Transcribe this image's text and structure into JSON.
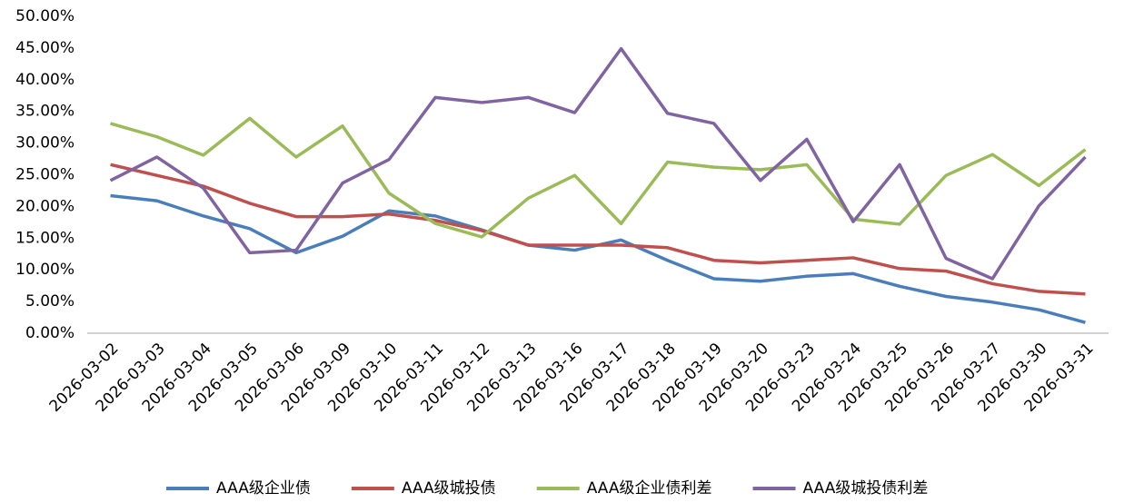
{
  "chart_data": {
    "type": "line",
    "categories": [
      "2026-03-02",
      "2026-03-03",
      "2026-03-04",
      "2026-03-05",
      "2026-03-06",
      "2026-03-09",
      "2026-03-10",
      "2026-03-11",
      "2026-03-12",
      "2026-03-13",
      "2026-03-16",
      "2026-03-17",
      "2026-03-18",
      "2026-03-19",
      "2026-03-20",
      "2026-03-23",
      "2026-03-24",
      "2026-03-25",
      "2026-03-26",
      "2026-03-27",
      "2026-03-30",
      "2026-03-31"
    ],
    "series": [
      {
        "name": "AAA级企业债",
        "color": "#4a7ebb",
        "values": [
          21.7,
          20.9,
          18.5,
          16.5,
          12.7,
          15.3,
          19.3,
          18.5,
          16.3,
          13.9,
          13.1,
          14.7,
          11.5,
          8.6,
          8.2,
          9.0,
          9.4,
          7.4,
          5.8,
          4.9,
          3.7,
          1.7
        ]
      },
      {
        "name": "AAA级城投债",
        "color": "#c0504d",
        "values": [
          26.6,
          24.9,
          23.2,
          20.5,
          18.4,
          18.4,
          18.8,
          17.8,
          16.2,
          13.9,
          13.9,
          13.9,
          13.5,
          11.5,
          11.1,
          11.5,
          11.9,
          10.2,
          9.8,
          7.8,
          6.6,
          6.2
        ]
      },
      {
        "name": "AAA级企业债利差",
        "color": "#9bbb59",
        "values": [
          33.1,
          31.0,
          28.1,
          33.9,
          27.8,
          32.7,
          22.1,
          17.3,
          15.2,
          21.3,
          24.9,
          17.3,
          27.0,
          26.2,
          25.8,
          26.6,
          18.0,
          17.2,
          24.9,
          28.2,
          23.3,
          29.0
        ]
      },
      {
        "name": "AAA级城投债利差",
        "color": "#8064a2",
        "values": [
          24.1,
          27.8,
          22.9,
          12.7,
          13.1,
          23.7,
          27.4,
          37.2,
          36.4,
          37.2,
          34.8,
          44.9,
          34.7,
          33.1,
          24.1,
          30.6,
          17.6,
          26.6,
          11.8,
          8.6,
          20.1,
          27.8
        ]
      }
    ],
    "ylim": [
      0,
      50
    ],
    "yticks": [
      {
        "value": 0,
        "label": "0.00%"
      },
      {
        "value": 5,
        "label": "5.00%"
      },
      {
        "value": 10,
        "label": "10.00%"
      },
      {
        "value": 15,
        "label": "15.00%"
      },
      {
        "value": 20,
        "label": "20.00%"
      },
      {
        "value": 25,
        "label": "25.00%"
      },
      {
        "value": 30,
        "label": "30.00%"
      },
      {
        "value": 35,
        "label": "35.00%"
      },
      {
        "value": 40,
        "label": "40.00%"
      },
      {
        "value": 45,
        "label": "45.00%"
      },
      {
        "value": 50,
        "label": "50.00%"
      }
    ],
    "legend": "bottom"
  }
}
